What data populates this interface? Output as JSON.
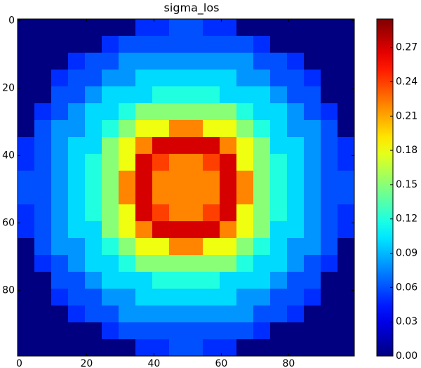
{
  "chart_data": {
    "type": "heatmap",
    "title": "sigma_los",
    "colormap": "jet",
    "xbins": [
      -0.5,
      4.5,
      9.5,
      14.5,
      19.5,
      24.5,
      29.5,
      34.5,
      39.5,
      44.5,
      49.5,
      54.5,
      59.5,
      64.5,
      69.5,
      74.5,
      79.5,
      84.5,
      89.5,
      94.5,
      99.5
    ],
    "ybins": [
      -0.5,
      4.5,
      9.5,
      14.5,
      19.5,
      24.5,
      29.5,
      34.5,
      39.5,
      44.5,
      49.5,
      54.5,
      59.5,
      64.5,
      69.5,
      74.5,
      79.5,
      84.5,
      89.5,
      94.5,
      99.5
    ],
    "xlim": [
      -0.5,
      99.5
    ],
    "ylim": [
      99.5,
      -0.5
    ],
    "xticks": [
      0,
      20,
      40,
      60,
      80
    ],
    "yticks": [
      0,
      20,
      40,
      60,
      80
    ],
    "clim": [
      0,
      0.295
    ],
    "cticks": [
      {
        "value": 0,
        "label": "0.00"
      },
      {
        "value": 0.03,
        "label": "0.03"
      },
      {
        "value": 0.06,
        "label": "0.06"
      },
      {
        "value": 0.09,
        "label": "0.09"
      },
      {
        "value": 0.12,
        "label": "0.12"
      },
      {
        "value": 0.15,
        "label": "0.15"
      },
      {
        "value": 0.18,
        "label": "0.18"
      },
      {
        "value": 0.21,
        "label": "0.21"
      },
      {
        "value": 0.24,
        "label": "0.24"
      },
      {
        "value": 0.27,
        "label": "0.27"
      }
    ],
    "values": [
      [
        0,
        0,
        0,
        0,
        0,
        0,
        0,
        0.05,
        0.05,
        0.06,
        0.06,
        0.05,
        0.05,
        0,
        0,
        0,
        0,
        0,
        0,
        0
      ],
      [
        0,
        0,
        0,
        0,
        0,
        0.05,
        0.06,
        0.06,
        0.06,
        0.06,
        0.06,
        0.06,
        0.06,
        0.06,
        0.05,
        0,
        0,
        0,
        0,
        0
      ],
      [
        0,
        0,
        0,
        0.05,
        0.06,
        0.06,
        0.08,
        0.08,
        0.08,
        0.08,
        0.08,
        0.08,
        0.08,
        0.08,
        0.06,
        0.06,
        0.05,
        0,
        0,
        0
      ],
      [
        0,
        0,
        0.05,
        0.06,
        0.06,
        0.08,
        0.08,
        0.1,
        0.1,
        0.1,
        0.1,
        0.1,
        0.1,
        0.08,
        0.08,
        0.06,
        0.06,
        0.05,
        0,
        0
      ],
      [
        0,
        0,
        0.06,
        0.06,
        0.08,
        0.1,
        0.1,
        0.1,
        0.12,
        0.12,
        0.12,
        0.12,
        0.1,
        0.1,
        0.1,
        0.08,
        0.06,
        0.06,
        0,
        0
      ],
      [
        0,
        0.05,
        0.06,
        0.08,
        0.1,
        0.1,
        0.12,
        0.15,
        0.15,
        0.15,
        0.15,
        0.15,
        0.15,
        0.12,
        0.1,
        0.1,
        0.08,
        0.06,
        0.05,
        0
      ],
      [
        0,
        0.06,
        0.08,
        0.08,
        0.1,
        0.12,
        0.15,
        0.18,
        0.18,
        0.22,
        0.22,
        0.18,
        0.18,
        0.15,
        0.12,
        0.1,
        0.08,
        0.08,
        0.06,
        0
      ],
      [
        0.05,
        0.06,
        0.08,
        0.1,
        0.1,
        0.15,
        0.18,
        0.22,
        0.27,
        0.27,
        0.27,
        0.27,
        0.22,
        0.18,
        0.15,
        0.1,
        0.1,
        0.08,
        0.06,
        0.05
      ],
      [
        0.05,
        0.06,
        0.08,
        0.1,
        0.12,
        0.15,
        0.18,
        0.27,
        0.24,
        0.22,
        0.22,
        0.24,
        0.27,
        0.18,
        0.15,
        0.12,
        0.1,
        0.08,
        0.06,
        0.05
      ],
      [
        0.06,
        0.06,
        0.08,
        0.1,
        0.12,
        0.15,
        0.22,
        0.27,
        0.22,
        0.22,
        0.22,
        0.22,
        0.27,
        0.22,
        0.15,
        0.12,
        0.1,
        0.08,
        0.06,
        0.06
      ],
      [
        0.06,
        0.06,
        0.08,
        0.1,
        0.12,
        0.15,
        0.22,
        0.27,
        0.22,
        0.22,
        0.22,
        0.22,
        0.27,
        0.22,
        0.15,
        0.12,
        0.1,
        0.08,
        0.06,
        0.06
      ],
      [
        0.05,
        0.06,
        0.08,
        0.1,
        0.12,
        0.15,
        0.18,
        0.27,
        0.24,
        0.22,
        0.22,
        0.24,
        0.27,
        0.18,
        0.15,
        0.12,
        0.1,
        0.08,
        0.06,
        0.05
      ],
      [
        0.05,
        0.06,
        0.08,
        0.1,
        0.1,
        0.15,
        0.18,
        0.22,
        0.27,
        0.27,
        0.27,
        0.27,
        0.22,
        0.18,
        0.15,
        0.1,
        0.1,
        0.08,
        0.06,
        0.05
      ],
      [
        0,
        0.06,
        0.08,
        0.08,
        0.1,
        0.12,
        0.15,
        0.18,
        0.18,
        0.22,
        0.22,
        0.18,
        0.18,
        0.15,
        0.12,
        0.1,
        0.08,
        0.08,
        0.06,
        0
      ],
      [
        0,
        0.05,
        0.06,
        0.08,
        0.1,
        0.1,
        0.12,
        0.15,
        0.15,
        0.15,
        0.15,
        0.15,
        0.15,
        0.12,
        0.1,
        0.1,
        0.08,
        0.06,
        0.05,
        0
      ],
      [
        0,
        0,
        0.06,
        0.06,
        0.08,
        0.1,
        0.1,
        0.1,
        0.12,
        0.12,
        0.12,
        0.12,
        0.1,
        0.1,
        0.1,
        0.08,
        0.06,
        0.06,
        0,
        0
      ],
      [
        0,
        0,
        0.05,
        0.06,
        0.06,
        0.08,
        0.08,
        0.1,
        0.1,
        0.1,
        0.1,
        0.1,
        0.1,
        0.08,
        0.08,
        0.06,
        0.06,
        0.05,
        0,
        0
      ],
      [
        0,
        0,
        0,
        0.05,
        0.06,
        0.06,
        0.08,
        0.08,
        0.08,
        0.08,
        0.08,
        0.08,
        0.08,
        0.08,
        0.06,
        0.06,
        0.05,
        0,
        0,
        0
      ],
      [
        0,
        0,
        0,
        0,
        0,
        0.05,
        0.06,
        0.06,
        0.06,
        0.06,
        0.06,
        0.06,
        0.06,
        0.06,
        0.05,
        0,
        0,
        0,
        0,
        0
      ],
      [
        0,
        0,
        0,
        0,
        0,
        0,
        0,
        0.05,
        0.05,
        0.06,
        0.06,
        0.05,
        0.05,
        0,
        0,
        0,
        0,
        0,
        0,
        0
      ]
    ]
  }
}
